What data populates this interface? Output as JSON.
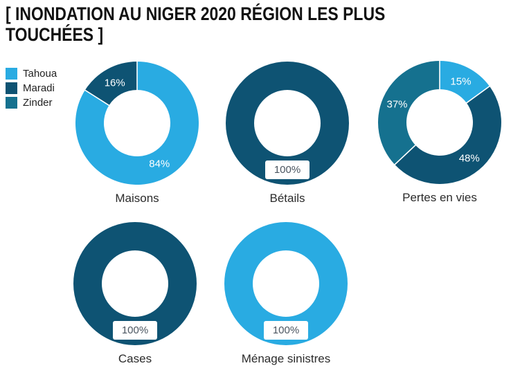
{
  "title": "[ INONDATION AU NIGER 2020 RÉGION LES PLUS TOUCHÉES ]",
  "legend": {
    "items": [
      {
        "label": "Tahoua",
        "color": "#29ABE2"
      },
      {
        "label": "Maradi",
        "color": "#0E5373"
      },
      {
        "label": "Zinder",
        "color": "#15718F"
      }
    ]
  },
  "colors": {
    "tahoua": "#29ABE2",
    "maradi": "#0E5373",
    "zinder": "#15718F",
    "title_text": "#111111",
    "category_text": "#2b2b2b",
    "slice_label_light": "#ffffff",
    "slice_label_dark": "#4a5560",
    "background": "#ffffff"
  },
  "chart_data": [
    {
      "type": "pie",
      "title": "Maisons",
      "hole_ratio": 0.54,
      "start_angle_deg": 0,
      "slices": [
        {
          "name": "Tahoua",
          "value": 84,
          "label": "84%",
          "color": "#29ABE2"
        },
        {
          "name": "Maradi",
          "value": 16,
          "label": "16%",
          "color": "#0E5373"
        }
      ]
    },
    {
      "type": "pie",
      "title": "Bétails",
      "hole_ratio": 0.54,
      "start_angle_deg": 0,
      "slices": [
        {
          "name": "Maradi",
          "value": 100,
          "label": "100%",
          "color": "#0E5373"
        }
      ]
    },
    {
      "type": "pie",
      "title": "Pertes en vies",
      "hole_ratio": 0.54,
      "start_angle_deg": 0,
      "slices": [
        {
          "name": "Tahoua",
          "value": 15,
          "label": "15%",
          "color": "#29ABE2"
        },
        {
          "name": "Maradi",
          "value": 48,
          "label": "48%",
          "color": "#0E5373"
        },
        {
          "name": "Zinder",
          "value": 37,
          "label": "37%",
          "color": "#15718F"
        }
      ]
    },
    {
      "type": "pie",
      "title": "Cases",
      "hole_ratio": 0.54,
      "start_angle_deg": 0,
      "slices": [
        {
          "name": "Maradi",
          "value": 100,
          "label": "100%",
          "color": "#0E5373"
        }
      ]
    },
    {
      "type": "pie",
      "title": "Ménage sinistres",
      "hole_ratio": 0.54,
      "start_angle_deg": 0,
      "slices": [
        {
          "name": "Tahoua",
          "value": 100,
          "label": "100%",
          "color": "#29ABE2"
        }
      ]
    }
  ]
}
